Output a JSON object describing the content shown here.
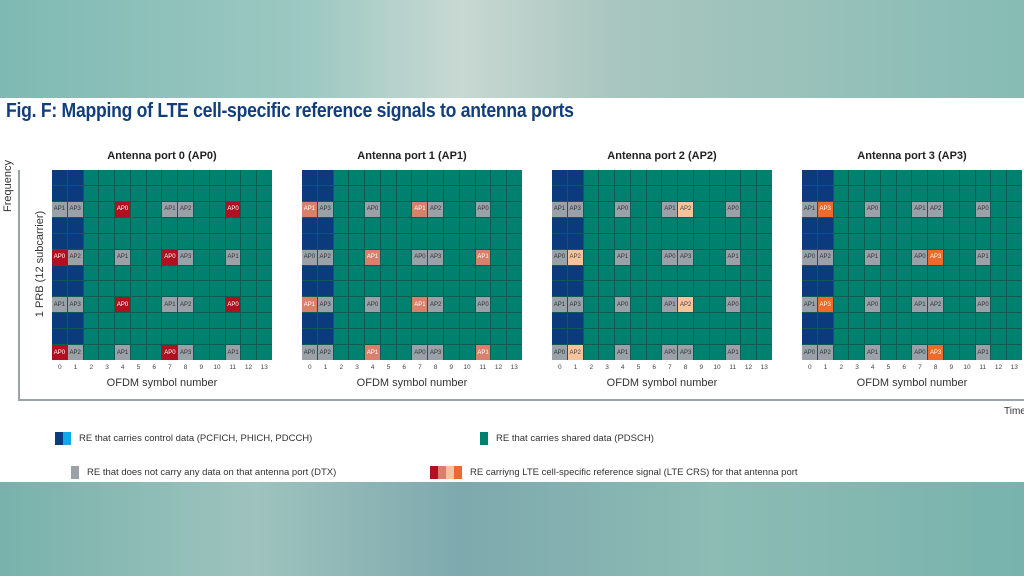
{
  "title": "Fig. F: Mapping of LTE cell-specific reference signals to antenna ports",
  "axes": {
    "frequency": "Frequency",
    "prb": "1 PRB (12 subcarrier)",
    "time": "Time",
    "xlabel": "OFDM symbol number",
    "ticks": [
      "0",
      "1",
      "2",
      "3",
      "4",
      "5",
      "6",
      "7",
      "8",
      "9",
      "10",
      "11",
      "12",
      "13"
    ]
  },
  "grid": {
    "rows": 12,
    "cols": 14,
    "control_cols": [
      0,
      1
    ],
    "re_rows": [
      {
        "row": 2,
        "cells": {
          "0": "AP1",
          "1": "AP3",
          "4": "AP0",
          "7": "AP1",
          "8": "AP2",
          "11": "AP0"
        }
      },
      {
        "row": 5,
        "cells": {
          "0": "AP0",
          "1": "AP2",
          "4": "AP1",
          "7": "AP0",
          "8": "AP3",
          "11": "AP1"
        }
      },
      {
        "row": 8,
        "cells": {
          "0": "AP1",
          "1": "AP3",
          "4": "AP0",
          "7": "AP1",
          "8": "AP2",
          "11": "AP0"
        }
      },
      {
        "row": 11,
        "cells": {
          "0": "AP0",
          "1": "AP2",
          "4": "AP1",
          "7": "AP0",
          "8": "AP3",
          "11": "AP1"
        }
      }
    ]
  },
  "ports": [
    {
      "title": "Antenna port 0 (AP0)",
      "port": "AP0",
      "color": "#b0101f"
    },
    {
      "title": "Antenna port 1 (AP1)",
      "port": "AP1",
      "color": "#d9806c"
    },
    {
      "title": "Antenna port 2 (AP2)",
      "port": "AP2",
      "color": "#f7c39c"
    },
    {
      "title": "Antenna port 3 (AP3)",
      "port": "AP3",
      "color": "#ee6a2b"
    }
  ],
  "colors": {
    "control_dark": "#0b3b7c",
    "control_light": "#10a8ec",
    "shared": "#00806f",
    "dtx": "#9aa1a8"
  },
  "legend": {
    "control": "RE that carries control data (PCFICH, PHICH, PDCCH)",
    "shared": "RE that carries shared data (PDSCH)",
    "dtx": "RE that does not carry any data on that antenna port (DTX)",
    "crs": "RE carriyng LTE cell-specific reference signal (LTE CRS) for that antenna port"
  }
}
